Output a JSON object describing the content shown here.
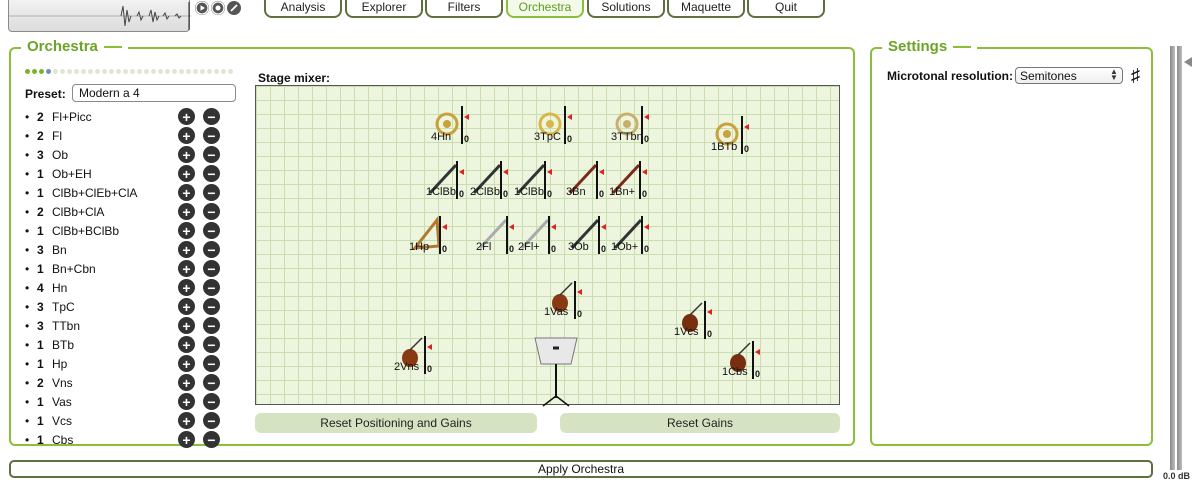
{
  "tabs": [
    {
      "label": "Analysis",
      "active": false
    },
    {
      "label": "Explorer",
      "active": false
    },
    {
      "label": "Filters",
      "active": false
    },
    {
      "label": "Orchestra",
      "active": true
    },
    {
      "label": "Solutions",
      "active": false
    },
    {
      "label": "Maquette",
      "active": false
    },
    {
      "label": "Quit",
      "active": false
    }
  ],
  "transport_icons": [
    "play-icon",
    "record-icon",
    "edit-icon"
  ],
  "orchestra": {
    "title": "Orchestra",
    "preset_label": "Preset:",
    "preset_value": "Modern a 4",
    "instruments": [
      {
        "count": "2",
        "name": "Fl+Picc"
      },
      {
        "count": "2",
        "name": "Fl"
      },
      {
        "count": "3",
        "name": "Ob"
      },
      {
        "count": "1",
        "name": "Ob+EH"
      },
      {
        "count": "1",
        "name": "ClBb+ClEb+ClA"
      },
      {
        "count": "2",
        "name": "ClBb+ClA"
      },
      {
        "count": "1",
        "name": "ClBb+BClBb"
      },
      {
        "count": "3",
        "name": "Bn"
      },
      {
        "count": "1",
        "name": "Bn+Cbn"
      },
      {
        "count": "4",
        "name": "Hn"
      },
      {
        "count": "3",
        "name": "TpC"
      },
      {
        "count": "3",
        "name": "TTbn"
      },
      {
        "count": "1",
        "name": "BTb"
      },
      {
        "count": "1",
        "name": "Hp"
      },
      {
        "count": "2",
        "name": "Vns"
      },
      {
        "count": "1",
        "name": "Vas"
      },
      {
        "count": "1",
        "name": "Vcs"
      },
      {
        "count": "1",
        "name": "Cbs"
      }
    ],
    "stage_label": "Stage mixer:",
    "stage_instruments": [
      {
        "label": "4Hn",
        "icon": "horn-icon",
        "gain": "0"
      },
      {
        "label": "3TpC",
        "icon": "trumpet-icon",
        "gain": "0"
      },
      {
        "label": "3TTbn",
        "icon": "trombone-icon",
        "gain": "0"
      },
      {
        "label": "1BTb",
        "icon": "tuba-icon",
        "gain": "0"
      },
      {
        "label": "1ClBb",
        "icon": "clarinet-icon",
        "gain": "0"
      },
      {
        "label": "2ClBb",
        "icon": "clarinet-icon",
        "gain": "0"
      },
      {
        "label": "1ClBb",
        "icon": "clarinet-icon",
        "gain": "0"
      },
      {
        "label": "3Bn",
        "icon": "bassoon-icon",
        "gain": "0"
      },
      {
        "label": "1Bn+",
        "icon": "bassoon-icon",
        "gain": "0"
      },
      {
        "label": "1Hp",
        "icon": "harp-icon",
        "gain": "0"
      },
      {
        "label": "2Fl",
        "icon": "flute-icon",
        "gain": "0"
      },
      {
        "label": "2Fl+",
        "icon": "flute-icon",
        "gain": "0"
      },
      {
        "label": "3Ob",
        "icon": "oboe-icon",
        "gain": "0"
      },
      {
        "label": "1Ob+",
        "icon": "oboe-icon",
        "gain": "0"
      },
      {
        "label": "1Vas",
        "icon": "viola-icon",
        "gain": "0"
      },
      {
        "label": "1Vcs",
        "icon": "cello-icon",
        "gain": "0"
      },
      {
        "label": "2Vns",
        "icon": "violin-icon",
        "gain": "0"
      },
      {
        "label": "1Cbs",
        "icon": "contrabass-icon",
        "gain": "0"
      }
    ],
    "reset_positioning_label": "Reset Positioning and Gains",
    "reset_gains_label": "Reset Gains"
  },
  "settings": {
    "title": "Settings",
    "microtonal_label": "Microtonal resolution:",
    "microtonal_value": "Semitones",
    "sharp_symbol": "♯"
  },
  "meter": {
    "db_label": "0.0 dB"
  },
  "apply_label": "Apply Orchestra"
}
